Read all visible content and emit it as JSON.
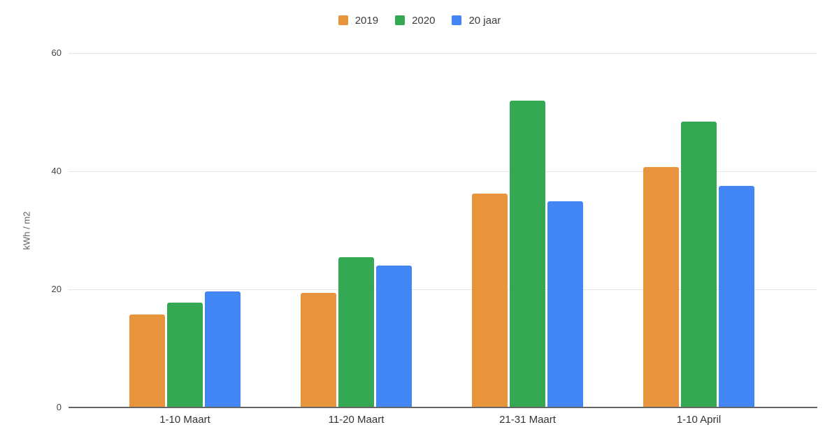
{
  "chart_data": {
    "type": "bar",
    "title": "",
    "xlabel": "",
    "ylabel": "kWh / m2",
    "ylim": [
      0,
      60
    ],
    "yticks": [
      0,
      20,
      40,
      60
    ],
    "grid": true,
    "legend_position": "top-center",
    "categories": [
      "1-10 Maart",
      "11-20 Maart",
      "21-31 Maart",
      "1-10 April"
    ],
    "series": [
      {
        "name": "2019",
        "color": "#E8943C",
        "values": [
          15.7,
          19.4,
          36.2,
          40.7
        ]
      },
      {
        "name": "2020",
        "color": "#34A853",
        "values": [
          17.8,
          25.5,
          51.9,
          48.4
        ]
      },
      {
        "name": "20 jaar",
        "color": "#4285F4",
        "values": [
          19.6,
          24.0,
          34.9,
          37.5
        ]
      }
    ],
    "colors": {
      "background": "#FFFFFF",
      "gridline": "#E6E6E6",
      "baseline": "#666666",
      "tick_text": "#444444",
      "category_text": "#333333",
      "legend_text": "#3C3C3C",
      "axis_title_text": "#5F5F5F"
    }
  }
}
